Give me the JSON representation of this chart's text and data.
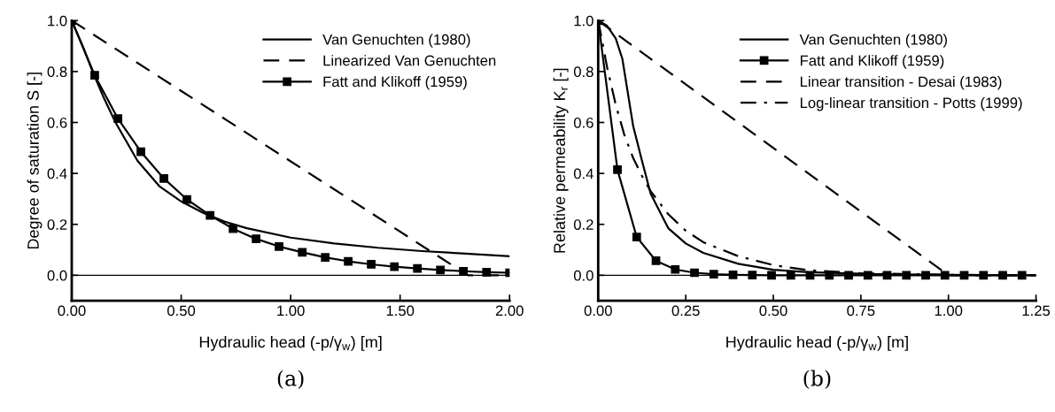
{
  "chart_data": [
    {
      "type": "line",
      "title": "(a)",
      "xlabel": "Hydraulic head (-p/γ$_{w}$) [m]",
      "ylabel": "Degree of saturation S [-]",
      "xlim": [
        0,
        2
      ],
      "ylim": [
        -0.1,
        1.0
      ],
      "xticks": [
        {
          "value": 0,
          "label": "0.00"
        },
        {
          "value": 0.5,
          "label": "0.50"
        },
        {
          "value": 1,
          "label": "1.00"
        },
        {
          "value": 1.5,
          "label": "1.50"
        },
        {
          "value": 2,
          "label": "2.00"
        }
      ],
      "yticks": [
        {
          "value": 0,
          "label": "0.0"
        },
        {
          "value": 0.2,
          "label": "0.2"
        },
        {
          "value": 0.4,
          "label": "0.4"
        },
        {
          "value": 0.6,
          "label": "0.6"
        },
        {
          "value": 0.8,
          "label": "0.8"
        },
        {
          "value": 1,
          "label": "1.0"
        }
      ],
      "grid": false,
      "legend": "top right",
      "ref_lines": [
        {
          "axis": "y",
          "value": 0,
          "color": "#000000"
        }
      ],
      "series": [
        {
          "name": "Van Genuchten (1980)",
          "color": "#000000",
          "line_style": "solid",
          "marker": "none",
          "x": [
            0,
            0.05,
            0.1,
            0.15,
            0.2,
            0.3,
            0.4,
            0.5,
            0.6,
            0.7,
            0.8,
            1.0,
            1.2,
            1.4,
            1.6,
            1.8,
            2.0
          ],
          "values": [
            1.0,
            0.9,
            0.79,
            0.69,
            0.6,
            0.45,
            0.35,
            0.29,
            0.245,
            0.21,
            0.185,
            0.148,
            0.125,
            0.108,
            0.095,
            0.085,
            0.075
          ]
        },
        {
          "name": "Linearized Van Genuchten",
          "color": "#000000",
          "line_style": "dashed",
          "marker": "none",
          "x": [
            0,
            1.81,
            2.0
          ],
          "values": [
            1.0,
            0,
            0
          ]
        },
        {
          "name": "Fatt and Klikoff (1959)",
          "color": "#000000",
          "line_style": "solid",
          "marker": "square",
          "x": [
            0,
            0.105,
            0.211,
            0.316,
            0.421,
            0.526,
            0.632,
            0.737,
            0.842,
            0.947,
            1.053,
            1.158,
            1.263,
            1.368,
            1.474,
            1.579,
            1.684,
            1.789,
            1.895,
            2.0
          ],
          "values": [
            1.0,
            0.785,
            0.615,
            0.485,
            0.38,
            0.298,
            0.235,
            0.183,
            0.143,
            0.113,
            0.09,
            0.07,
            0.055,
            0.043,
            0.034,
            0.027,
            0.021,
            0.016,
            0.012,
            0.01
          ]
        }
      ]
    },
    {
      "type": "line",
      "title": "(b)",
      "xlabel": "Hydraulic head (-p/γ$_{w}$) [m]",
      "ylabel": "Relative permeability K$_{r}$ [-]",
      "xlim": [
        0,
        1.25
      ],
      "ylim": [
        -0.1,
        1.0
      ],
      "xticks": [
        {
          "value": 0,
          "label": "0.00"
        },
        {
          "value": 0.25,
          "label": "0.25"
        },
        {
          "value": 0.5,
          "label": "0.50"
        },
        {
          "value": 0.75,
          "label": "0.75"
        },
        {
          "value": 1,
          "label": "1.00"
        },
        {
          "value": 1.25,
          "label": "1.25"
        }
      ],
      "yticks": [
        {
          "value": 0,
          "label": "0.0"
        },
        {
          "value": 0.2,
          "label": "0.2"
        },
        {
          "value": 0.4,
          "label": "0.4"
        },
        {
          "value": 0.6,
          "label": "0.6"
        },
        {
          "value": 0.8,
          "label": "0.8"
        },
        {
          "value": 1,
          "label": "1.0"
        }
      ],
      "grid": false,
      "legend": "top right",
      "ref_lines": [
        {
          "axis": "y",
          "value": 0,
          "color": "#000000"
        }
      ],
      "series": [
        {
          "name": "Van Genuchten (1980)",
          "color": "#000000",
          "line_style": "solid",
          "marker": "none",
          "x": [
            0,
            0.025,
            0.05,
            0.069,
            0.1,
            0.125,
            0.15,
            0.2,
            0.25,
            0.3,
            0.4,
            0.5,
            0.6,
            0.8,
            1.0,
            1.25
          ],
          "values": [
            1.0,
            0.98,
            0.93,
            0.85,
            0.585,
            0.45,
            0.32,
            0.185,
            0.125,
            0.088,
            0.045,
            0.022,
            0.012,
            0.004,
            0.002,
            0
          ]
        },
        {
          "name": "Fatt and Klikoff (1959)",
          "color": "#000000",
          "line_style": "solid",
          "marker": "square",
          "x": [
            0,
            0.055,
            0.11,
            0.165,
            0.22,
            0.275,
            0.33,
            0.385,
            0.44,
            0.495,
            0.55,
            0.605,
            0.66,
            0.715,
            0.77,
            0.825,
            0.88,
            0.935,
            0.99,
            1.045,
            1.1,
            1.155,
            1.21
          ],
          "values": [
            1.0,
            0.415,
            0.15,
            0.057,
            0.023,
            0.01,
            0.004,
            0.002,
            0.001,
            0,
            0,
            0,
            0,
            0,
            0,
            0,
            0,
            0,
            0,
            0,
            0,
            0,
            0
          ]
        },
        {
          "name": "Linear transition - Desai (1983)",
          "color": "#000000",
          "line_style": "dashed",
          "marker": "none",
          "x": [
            0,
            1.0,
            1.25
          ],
          "values": [
            1.0,
            0,
            0
          ]
        },
        {
          "name": "Log-linear transition - Potts (1999)",
          "color": "#000000",
          "line_style": "dashdot",
          "marker": "none",
          "x": [
            0,
            0.01,
            0.025,
            0.05,
            0.075,
            0.1,
            0.125,
            0.15,
            0.2,
            0.25,
            0.3,
            0.4,
            0.5,
            0.6,
            0.75,
            1.0,
            1.25
          ],
          "values": [
            1.0,
            0.93,
            0.82,
            0.67,
            0.55,
            0.46,
            0.39,
            0.33,
            0.24,
            0.175,
            0.13,
            0.075,
            0.04,
            0.02,
            0.008,
            0.002,
            0
          ]
        }
      ]
    }
  ]
}
